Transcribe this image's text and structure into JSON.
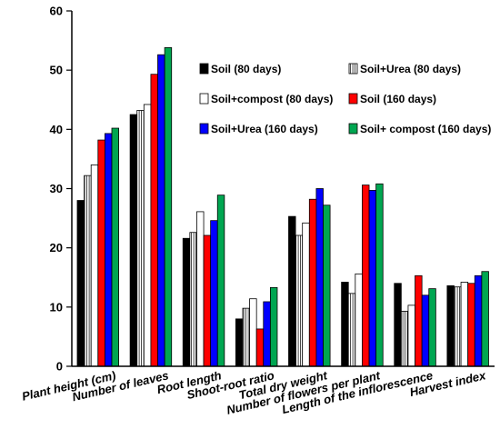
{
  "chart_data": {
    "type": "bar",
    "title": "",
    "xlabel": "",
    "ylabel": "",
    "ylim": [
      0,
      60
    ],
    "yticks": [
      0,
      10,
      20,
      30,
      40,
      50,
      60
    ],
    "grid": false,
    "legend_position": "top-right",
    "categories": [
      "Plant height (cm)",
      "Number of leaves",
      "Root length",
      "Shoot-root ratio",
      "Total dry weight",
      "Number of flowers per plant",
      "Length of the inflorescence",
      "Harvest index"
    ],
    "series": [
      {
        "name": "Soil (80 days)",
        "fill": "#000000",
        "hatch": false,
        "values": [
          28.0,
          42.5,
          21.6,
          8.0,
          25.3,
          14.2,
          14.0,
          13.6
        ]
      },
      {
        "name": "Soil+Urea (80 days)",
        "fill": "#ffffff",
        "hatch": true,
        "values": [
          32.2,
          43.2,
          22.6,
          9.8,
          22.1,
          12.3,
          9.3,
          13.4
        ]
      },
      {
        "name": "Soil+compost (80 days)",
        "fill": "#ffffff",
        "hatch": false,
        "values": [
          34.0,
          44.2,
          26.1,
          11.4,
          24.2,
          15.6,
          10.3,
          14.2
        ]
      },
      {
        "name": "Soil (160 days)",
        "fill": "#ff0000",
        "hatch": false,
        "values": [
          38.2,
          49.3,
          22.1,
          6.3,
          28.2,
          30.6,
          15.3,
          14.0
        ]
      },
      {
        "name": "Soil+Urea (160 days)",
        "fill": "#0000ff",
        "hatch": false,
        "values": [
          39.3,
          52.6,
          24.6,
          10.9,
          30.0,
          29.7,
          12.0,
          15.3
        ]
      },
      {
        "name": "Soil+ compost (160 days)",
        "fill": "#00a651",
        "hatch": false,
        "values": [
          40.2,
          53.8,
          28.9,
          13.3,
          27.2,
          30.8,
          13.1,
          16.0
        ]
      }
    ]
  }
}
